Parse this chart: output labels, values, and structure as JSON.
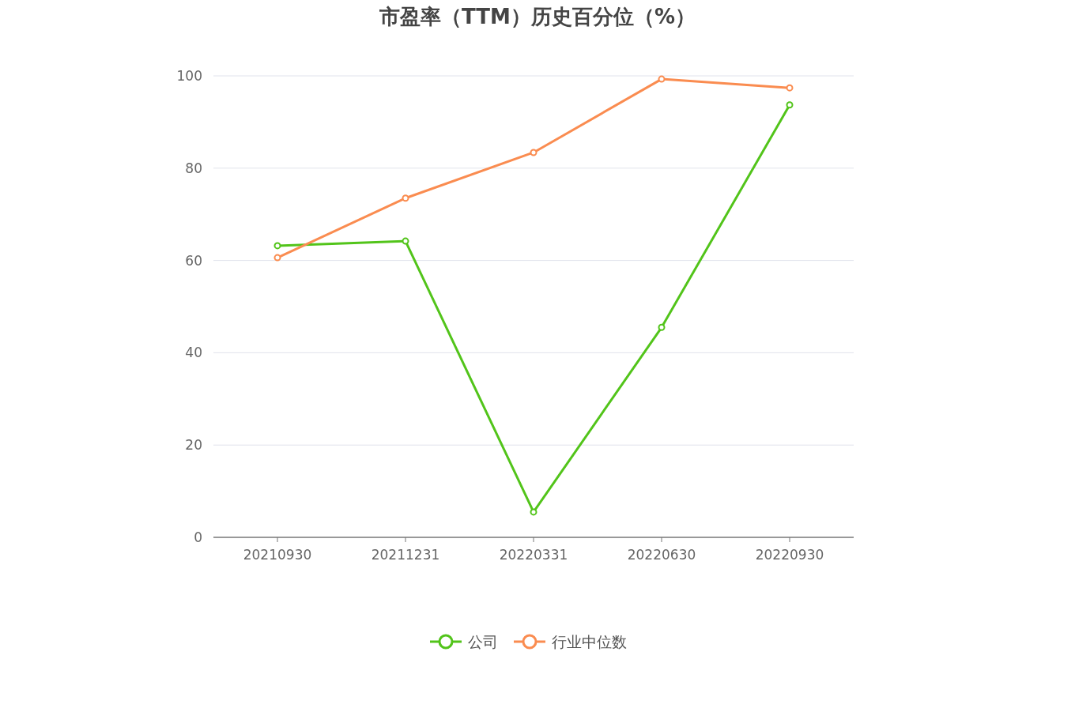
{
  "chart_data": {
    "type": "line",
    "title": "市盈率（TTM）历史百分位（%）",
    "categories": [
      "20210930",
      "20211231",
      "20220331",
      "20220630",
      "20220930"
    ],
    "series": [
      {
        "name": "公司",
        "color": "#52c41a",
        "values": [
          63.2,
          64.2,
          5.5,
          45.5,
          93.7
        ]
      },
      {
        "name": "行业中位数",
        "color": "#fa8c50",
        "values": [
          60.6,
          73.5,
          83.4,
          99.3,
          97.4
        ]
      }
    ],
    "ylim": [
      0,
      100
    ],
    "yticks": [
      0,
      20,
      40,
      60,
      80,
      100
    ],
    "grid": "y",
    "legend": "bottom",
    "marker": "circle",
    "line_style": "solid"
  }
}
